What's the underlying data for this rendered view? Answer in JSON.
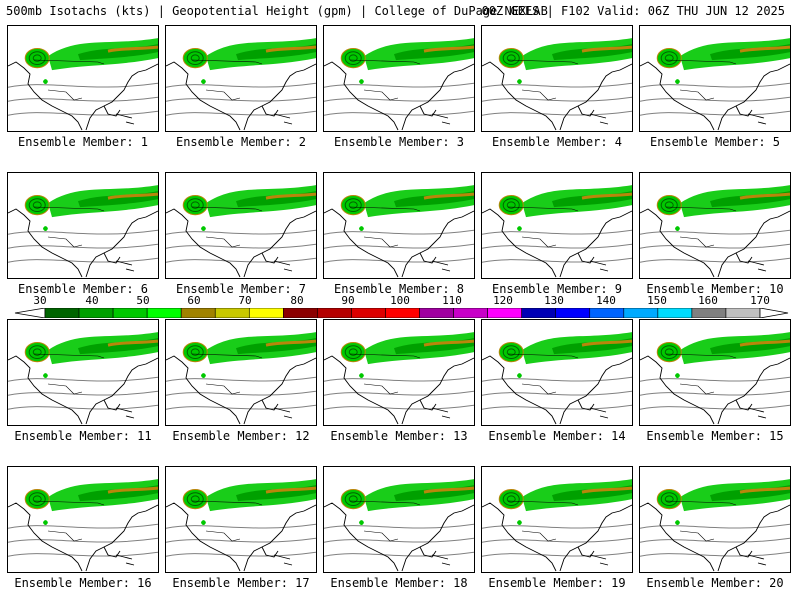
{
  "header": {
    "left": "500mb Isotachs (kts) | Geopotential Height (gpm) | College of DuPage NEXLAB",
    "right": "00Z GEFS | F102 Valid: 06Z THU JUN 12 2025"
  },
  "members": [
    "Ensemble Member: 1",
    "Ensemble Member: 2",
    "Ensemble Member: 3",
    "Ensemble Member: 4",
    "Ensemble Member: 5",
    "Ensemble Member: 6",
    "Ensemble Member: 7",
    "Ensemble Member: 8",
    "Ensemble Member: 9",
    "Ensemble Member: 10",
    "Ensemble Member: 11",
    "Ensemble Member: 12",
    "Ensemble Member: 13",
    "Ensemble Member: 14",
    "Ensemble Member: 15",
    "Ensemble Member: 16",
    "Ensemble Member: 17",
    "Ensemble Member: 18",
    "Ensemble Member: 19",
    "Ensemble Member: 20"
  ],
  "colorbar": {
    "labels": [
      "30",
      "40",
      "50",
      "60",
      "70",
      "80",
      "90",
      "100",
      "110",
      "120",
      "130",
      "140",
      "150",
      "160",
      "170"
    ],
    "colors": [
      "#006400",
      "#00a000",
      "#00c800",
      "#00ff00",
      "#a08200",
      "#c8c800",
      "#ffff00",
      "#8b0000",
      "#b40000",
      "#dc0000",
      "#ff0000",
      "#a000a0",
      "#c800c8",
      "#ff00ff",
      "#0000b4",
      "#0000ff",
      "#0064ff",
      "#00aaff",
      "#00dcff",
      "#808080",
      "#c0c0c0"
    ]
  },
  "legend_colors": {
    "land_outline": "#000000",
    "height_contour": "#808080",
    "jet_core": "#b8860b"
  }
}
